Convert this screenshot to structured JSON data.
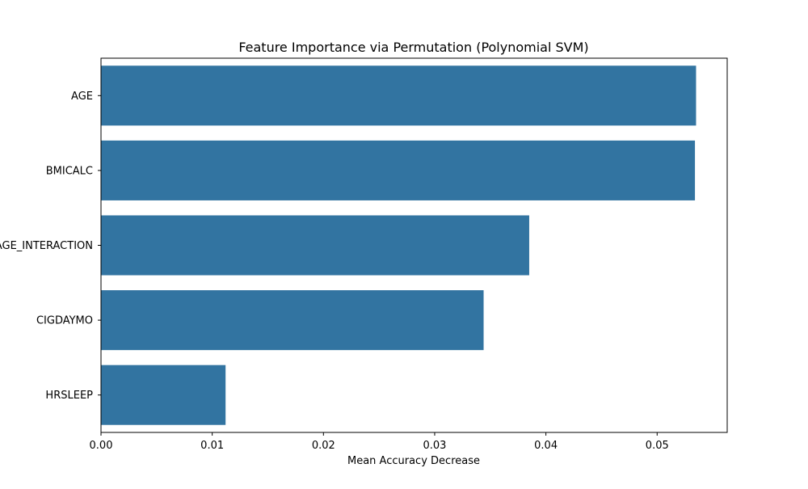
{
  "chart_data": {
    "type": "bar",
    "orientation": "horizontal",
    "title": "Feature Importance via Permutation (Polynomial SVM)",
    "xlabel": "Mean Accuracy Decrease",
    "ylabel": "",
    "categories": [
      "AGE",
      "BMICALC",
      "AGE_INTERACTION",
      "CIGDAYMO",
      "HRSLEEP"
    ],
    "values": [
      0.0535,
      0.0534,
      0.0385,
      0.0344,
      0.0112
    ],
    "xlim": [
      0.0,
      0.0563
    ],
    "xticks": [
      0.0,
      0.01,
      0.02,
      0.03,
      0.04,
      0.05
    ],
    "xtick_labels": [
      "0.00",
      "0.01",
      "0.02",
      "0.03",
      "0.04",
      "0.05"
    ],
    "grid": false,
    "bar_color": "#3274a1"
  }
}
